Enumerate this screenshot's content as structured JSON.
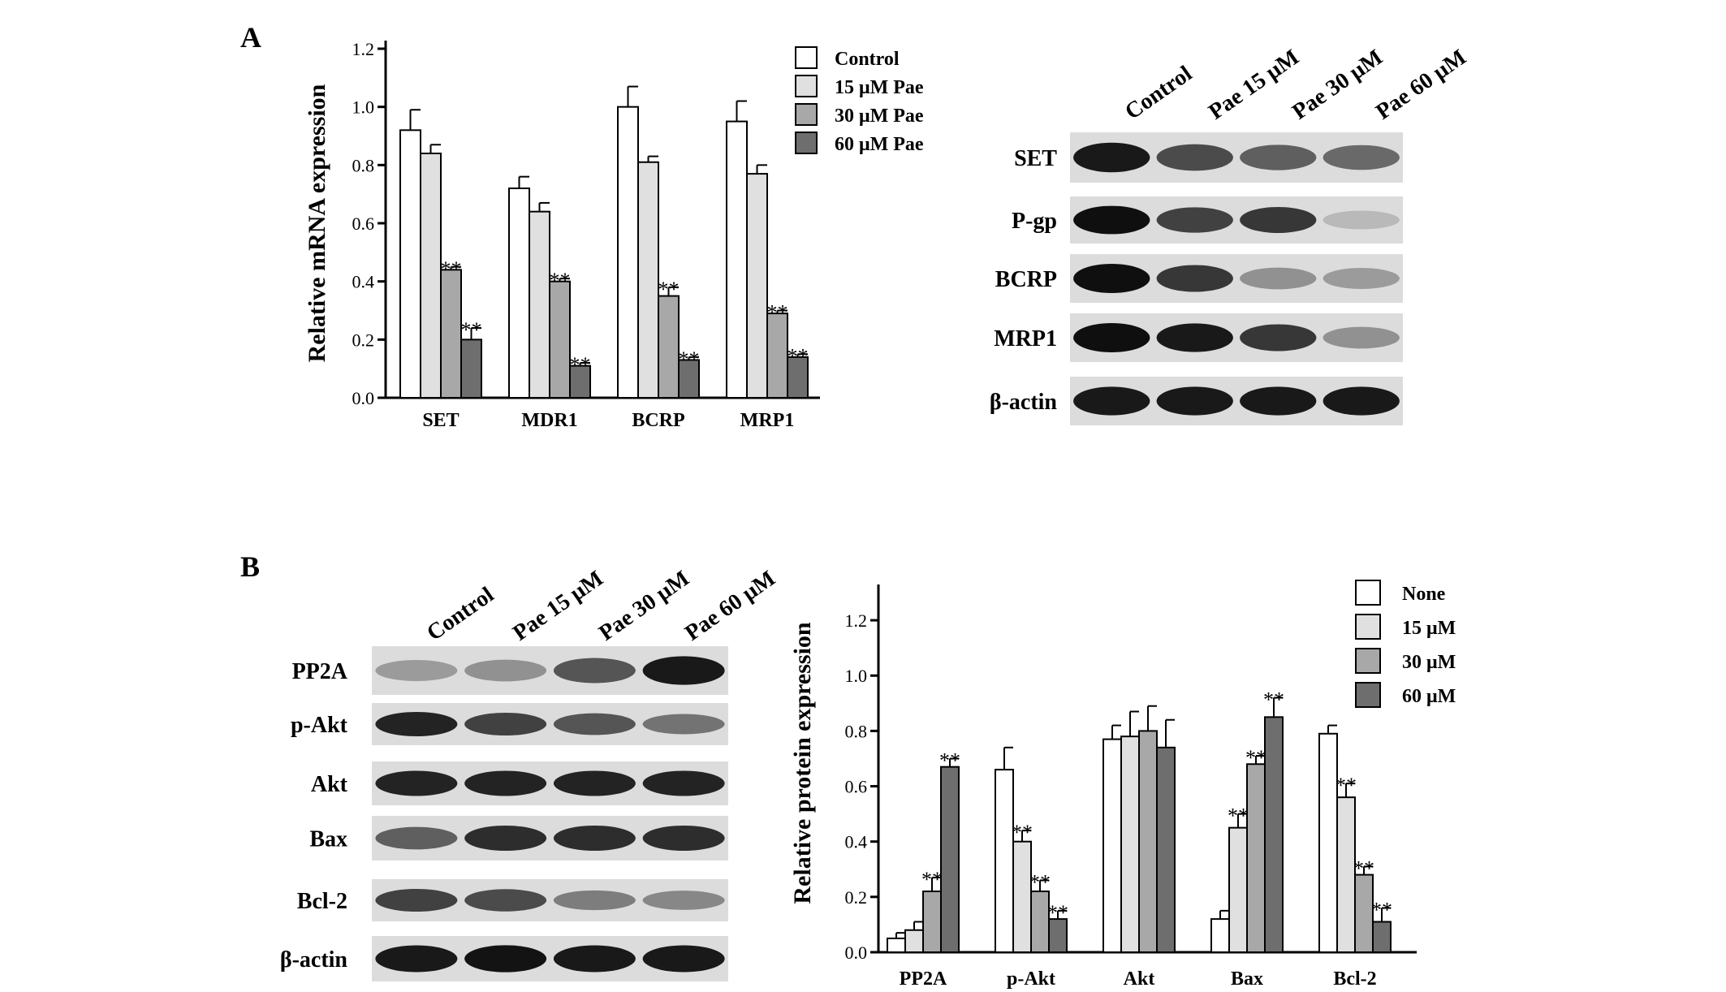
{
  "panels": {
    "a": "A",
    "b": "B"
  },
  "chart_data": [
    {
      "type": "bar",
      "ylabel": "Relative mRNA expression",
      "ylim": [
        0,
        1.2
      ],
      "yticks": [
        "0.0",
        "0.2",
        "0.4",
        "0.6",
        "0.8",
        "1.0",
        "1.2"
      ],
      "categories": [
        "SET",
        "MDR1",
        "BCRP",
        "MRP1"
      ],
      "legend_position": "top-right",
      "series": [
        {
          "name": "Control",
          "color": "#ffffff",
          "values": [
            0.92,
            0.72,
            1.0,
            0.95
          ],
          "errors": [
            0.07,
            0.04,
            0.07,
            0.07
          ]
        },
        {
          "name": "15 μM Pae",
          "color": "#e0e0e0",
          "values": [
            0.84,
            0.64,
            0.81,
            0.77
          ],
          "errors": [
            0.03,
            0.03,
            0.02,
            0.03
          ]
        },
        {
          "name": "30 μM Pae",
          "color": "#a8a8a8",
          "values": [
            0.44,
            0.4,
            0.35,
            0.29
          ],
          "errors": [
            0.01,
            0.01,
            0.03,
            0.01
          ]
        },
        {
          "name": "60 μM Pae",
          "color": "#6e6e6e",
          "values": [
            0.2,
            0.11,
            0.13,
            0.14
          ],
          "errors": [
            0.04,
            0.01,
            0.01,
            0.01
          ]
        }
      ],
      "significance_marks": [
        {
          "series": 2,
          "category": 0,
          "label": "**"
        },
        {
          "series": 3,
          "category": 0,
          "label": "**"
        },
        {
          "series": 2,
          "category": 1,
          "label": "**"
        },
        {
          "series": 3,
          "category": 1,
          "label": "**"
        },
        {
          "series": 2,
          "category": 2,
          "label": "**"
        },
        {
          "series": 3,
          "category": 2,
          "label": "**"
        },
        {
          "series": 2,
          "category": 3,
          "label": "**"
        },
        {
          "series": 3,
          "category": 3,
          "label": "**"
        }
      ]
    },
    {
      "type": "bar",
      "ylabel": "Relative protein expression",
      "ylim": [
        0,
        1.3
      ],
      "yticks": [
        "0.0",
        "0.2",
        "0.4",
        "0.6",
        "0.8",
        "1.0",
        "1.2"
      ],
      "categories": [
        "PP2A",
        "p-Akt",
        "Akt",
        "Bax",
        "Bcl-2"
      ],
      "legend_position": "top-right",
      "series": [
        {
          "name": "None",
          "color": "#ffffff",
          "values": [
            0.05,
            0.66,
            0.77,
            0.12,
            0.79
          ],
          "errors": [
            0.02,
            0.08,
            0.05,
            0.03,
            0.03
          ]
        },
        {
          "name": "15 μM",
          "color": "#e0e0e0",
          "values": [
            0.08,
            0.4,
            0.78,
            0.45,
            0.56
          ],
          "errors": [
            0.03,
            0.04,
            0.09,
            0.05,
            0.05
          ]
        },
        {
          "name": "30 μM",
          "color": "#a8a8a8",
          "values": [
            0.22,
            0.22,
            0.8,
            0.68,
            0.28
          ],
          "errors": [
            0.05,
            0.04,
            0.09,
            0.03,
            0.03
          ]
        },
        {
          "name": "60 μM",
          "color": "#6e6e6e",
          "values": [
            0.67,
            0.12,
            0.74,
            0.85,
            0.11
          ],
          "errors": [
            0.03,
            0.03,
            0.1,
            0.07,
            0.05
          ]
        }
      ],
      "significance_marks": [
        {
          "series": 2,
          "category": 0,
          "label": "**"
        },
        {
          "series": 3,
          "category": 0,
          "label": "**"
        },
        {
          "series": 1,
          "category": 1,
          "label": "**"
        },
        {
          "series": 2,
          "category": 1,
          "label": "**"
        },
        {
          "series": 3,
          "category": 1,
          "label": "**"
        },
        {
          "series": 1,
          "category": 3,
          "label": "**"
        },
        {
          "series": 2,
          "category": 3,
          "label": "**"
        },
        {
          "series": 3,
          "category": 3,
          "label": "**"
        },
        {
          "series": 1,
          "category": 4,
          "label": "**"
        },
        {
          "series": 2,
          "category": 4,
          "label": "**"
        },
        {
          "series": 3,
          "category": 4,
          "label": "**"
        }
      ]
    }
  ],
  "blots": [
    {
      "lanes": [
        "Control",
        "Pae 15 μM",
        "Pae 30 μM",
        "Pae 60 μM"
      ],
      "rows": [
        {
          "label": "SET",
          "intensity": [
            0.95,
            0.7,
            0.6,
            0.55
          ]
        },
        {
          "label": "P-gp",
          "intensity": [
            1.0,
            0.75,
            0.8,
            0.15
          ]
        },
        {
          "label": "BCRP",
          "intensity": [
            1.0,
            0.8,
            0.35,
            0.3
          ]
        },
        {
          "label": "MRP1",
          "intensity": [
            1.0,
            0.95,
            0.8,
            0.35
          ]
        },
        {
          "label": "β-actin",
          "intensity": [
            0.95,
            0.95,
            0.95,
            0.95
          ]
        }
      ]
    },
    {
      "lanes": [
        "Control",
        "Pae 15 μM",
        "Pae 30 μM",
        "Pae 60 μM"
      ],
      "rows": [
        {
          "label": "PP2A",
          "intensity": [
            0.3,
            0.35,
            0.65,
            0.95
          ]
        },
        {
          "label": "p-Akt",
          "intensity": [
            0.9,
            0.75,
            0.65,
            0.5
          ]
        },
        {
          "label": "Akt",
          "intensity": [
            0.9,
            0.9,
            0.9,
            0.9
          ]
        },
        {
          "label": "Bax",
          "intensity": [
            0.6,
            0.85,
            0.85,
            0.85
          ]
        },
        {
          "label": "Bcl-2",
          "intensity": [
            0.75,
            0.7,
            0.45,
            0.4
          ]
        },
        {
          "label": "β-actin",
          "intensity": [
            0.95,
            0.98,
            0.95,
            0.95
          ]
        }
      ]
    }
  ]
}
